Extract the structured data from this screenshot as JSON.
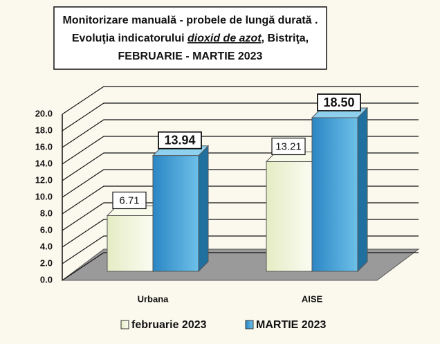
{
  "chart_data": {
    "type": "bar3d",
    "title": [
      "Monitorizare manuală - probele de lungă durată .",
      "Evoluţia indicatorului ",
      "dioxid de azot",
      ", Bistriţa,",
      "FEBRUARIE  - MARTIE 2023"
    ],
    "categories": [
      "Urbana",
      "AISE"
    ],
    "series": [
      {
        "name": "februarie 2023",
        "color": "#eef3d6",
        "values": [
          6.71,
          13.21
        ],
        "value_labels": [
          "6.71",
          "13.21"
        ]
      },
      {
        "name": "MARTIE 2023",
        "color": "#3a9ad0",
        "values": [
          13.94,
          18.5
        ],
        "value_labels": [
          "13.94",
          "18.50"
        ]
      }
    ],
    "ylim": [
      0,
      20
    ],
    "yticks": [
      {
        "value": 0,
        "label": "0.0"
      },
      {
        "value": 2,
        "label": "2.0"
      },
      {
        "value": 4,
        "label": "4.0"
      },
      {
        "value": 6,
        "label": "6.0"
      },
      {
        "value": 8,
        "label": "8.0"
      },
      {
        "value": 10,
        "label": "10.0"
      },
      {
        "value": 12,
        "label": "12.0"
      },
      {
        "value": 14,
        "label": "14.0"
      },
      {
        "value": 16,
        "label": "16.0"
      },
      {
        "value": 18,
        "label": "18.0"
      },
      {
        "value": 20,
        "label": "20.0"
      }
    ],
    "grid": true,
    "legend": "bottom"
  }
}
